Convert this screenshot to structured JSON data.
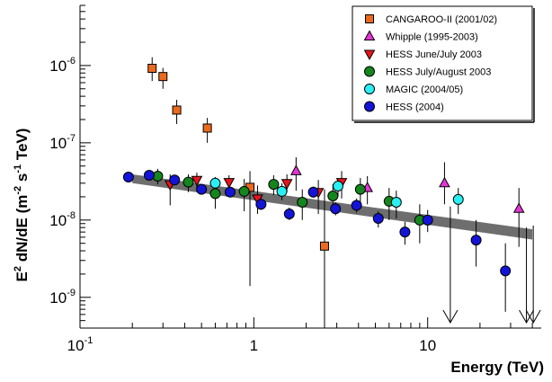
{
  "chart_data": {
    "type": "scatter",
    "xlabel": "Energy (TeV)",
    "ylabel_parts": {
      "base": "E",
      "base_sup": "2",
      "middle": " dN/dE  (m",
      "m_sup": "-2",
      "s": " s",
      "s_sup": "-1",
      "tail": " TeV)"
    },
    "x_scale": "log",
    "y_scale": "log",
    "xlim": [
      0.1,
      45
    ],
    "ylim": [
      4e-10,
      6e-06
    ],
    "x_ticks": [
      {
        "value": 0.1,
        "base": "10",
        "exp": "-1"
      },
      {
        "value": 1,
        "base": "1",
        "exp": ""
      },
      {
        "value": 10,
        "base": "10",
        "exp": ""
      }
    ],
    "y_ticks": [
      {
        "value": 1e-09,
        "base": "10",
        "exp": "-9"
      },
      {
        "value": 1e-08,
        "base": "10",
        "exp": "-8"
      },
      {
        "value": 1e-07,
        "base": "10",
        "exp": "-7"
      },
      {
        "value": 1e-06,
        "base": "10",
        "exp": "-6"
      }
    ],
    "grid": false,
    "legend_position": "top-right",
    "band": {
      "color": "#6e6e6e",
      "upper": [
        [
          0.2,
          3.9e-08
        ],
        [
          40,
          7.6e-09
        ]
      ],
      "lower": [
        [
          0.2,
          3e-08
        ],
        [
          40,
          5.6e-09
        ]
      ]
    },
    "series": [
      {
        "name": "CANGAROO-II (2001/02)",
        "marker": "square",
        "color": "#ec6a1e",
        "points": [
          {
            "x": 0.26,
            "y": 9.2e-07,
            "lo": 6.3e-07,
            "hi": 1.28e-06
          },
          {
            "x": 0.3,
            "y": 7.2e-07,
            "lo": 5e-07,
            "hi": 9.3e-07
          },
          {
            "x": 0.36,
            "y": 2.65e-07,
            "lo": 1.75e-07,
            "hi": 3.6e-07
          },
          {
            "x": 0.54,
            "y": 1.55e-07,
            "lo": 1e-07,
            "hi": 2.1e-07
          },
          {
            "x": 0.95,
            "y": 2.65e-08,
            "lo": 1.4e-09,
            "hi": 4.3e-08
          },
          {
            "x": 2.55,
            "y": 4.6e-09,
            "lo": 4e-10,
            "hi": 2.5e-08
          }
        ]
      },
      {
        "name": "Whipple (1995-2003)",
        "marker": "triangle-up",
        "color": "#e535d6",
        "points": [
          {
            "x": 1.75,
            "y": 4.3e-08,
            "lo": 2.4e-08,
            "hi": 6.5e-08
          },
          {
            "x": 4.5,
            "y": 2.6e-08,
            "lo": 1.6e-08,
            "hi": 3.7e-08
          },
          {
            "x": 12.5,
            "y": 3e-08,
            "lo": 1.6e-08,
            "hi": 5.6e-08
          },
          {
            "x": 33.5,
            "y": 1.4e-08,
            "lo": 4.5e-09,
            "hi": 2.6e-08
          }
        ]
      },
      {
        "name": "HESS June/July 2003",
        "marker": "triangle-down",
        "color": "#e8141b",
        "points": [
          {
            "x": 0.33,
            "y": 2.9e-08,
            "lo": 1.55e-08,
            "hi": 3.9e-08
          },
          {
            "x": 0.47,
            "y": 3.3e-08,
            "lo": 2.3e-08,
            "hi": 4.1e-08
          },
          {
            "x": 0.72,
            "y": 3.1e-08,
            "lo": 2.1e-08,
            "hi": 3.8e-08
          },
          {
            "x": 1.05,
            "y": 1.9e-08,
            "lo": 1.2e-08,
            "hi": 2.8e-08
          },
          {
            "x": 1.55,
            "y": 3e-08,
            "lo": 2.3e-08,
            "hi": 3.9e-08
          },
          {
            "x": 2.35,
            "y": 2.3e-08,
            "lo": 1.2e-08,
            "hi": 3.3e-08
          },
          {
            "x": 3.2,
            "y": 3.1e-08,
            "lo": 1.9e-08,
            "hi": 4.3e-08
          }
        ]
      },
      {
        "name": "HESS July/August 2003",
        "marker": "circle",
        "color": "#14861d",
        "points": [
          {
            "x": 0.28,
            "y": 3.7e-08,
            "lo": 2.9e-08,
            "hi": 4.6e-08
          },
          {
            "x": 0.42,
            "y": 3.1e-08,
            "lo": 2.3e-08,
            "hi": 3.9e-08
          },
          {
            "x": 0.6,
            "y": 2.2e-08,
            "lo": 1.4e-08,
            "hi": 3e-08
          },
          {
            "x": 0.88,
            "y": 2.35e-08,
            "lo": 1.3e-08,
            "hi": 3.4e-08
          },
          {
            "x": 1.3,
            "y": 2.9e-08,
            "lo": 2.1e-08,
            "hi": 3.8e-08
          },
          {
            "x": 1.9,
            "y": 1.7e-08,
            "lo": 1e-08,
            "hi": 2.5e-08
          },
          {
            "x": 2.85,
            "y": 2.05e-08,
            "lo": 1.3e-08,
            "hi": 2.9e-08
          },
          {
            "x": 4.1,
            "y": 2.5e-08,
            "lo": 1.6e-08,
            "hi": 3.5e-08
          },
          {
            "x": 6.0,
            "y": 1.75e-08,
            "lo": 1e-08,
            "hi": 2.6e-08
          },
          {
            "x": 9.0,
            "y": 1e-08,
            "lo": 5e-09,
            "hi": 1.6e-08
          }
        ]
      },
      {
        "name": "MAGIC (2004/05)",
        "marker": "circle",
        "color": "#2af0f4",
        "points": [
          {
            "x": 0.6,
            "y": 3e-08,
            "lo": 2.5e-08,
            "hi": 3.6e-08
          },
          {
            "x": 1.45,
            "y": 2.35e-08,
            "lo": 1.8e-08,
            "hi": 3e-08
          },
          {
            "x": 3.05,
            "y": 2.75e-08,
            "lo": 2e-08,
            "hi": 3.5e-08
          },
          {
            "x": 6.6,
            "y": 1.7e-08,
            "lo": 1.05e-08,
            "hi": 2.4e-08
          },
          {
            "x": 15.0,
            "y": 1.85e-08,
            "lo": 1.2e-08,
            "hi": 2.6e-08
          }
        ]
      },
      {
        "name": "HESS (2004)",
        "marker": "circle",
        "color": "#1414d8",
        "points": [
          {
            "x": 0.19,
            "y": 3.6e-08,
            "lo": 3.3e-08,
            "hi": 3.9e-08
          },
          {
            "x": 0.25,
            "y": 3.8e-08,
            "lo": 3.5e-08,
            "hi": 4.1e-08
          },
          {
            "x": 0.35,
            "y": 3.3e-08,
            "lo": 3e-08,
            "hi": 3.6e-08
          },
          {
            "x": 0.5,
            "y": 2.5e-08,
            "lo": 2.2e-08,
            "hi": 2.8e-08
          },
          {
            "x": 0.73,
            "y": 2.3e-08,
            "lo": 2e-08,
            "hi": 2.6e-08
          },
          {
            "x": 1.1,
            "y": 1.6e-08,
            "lo": 1.35e-08,
            "hi": 1.85e-08
          },
          {
            "x": 1.6,
            "y": 1.2e-08,
            "lo": 1e-08,
            "hi": 1.45e-08
          },
          {
            "x": 2.2,
            "y": 2.3e-08,
            "lo": 1.95e-08,
            "hi": 2.7e-08
          },
          {
            "x": 2.95,
            "y": 1.4e-08,
            "lo": 1.15e-08,
            "hi": 1.7e-08
          },
          {
            "x": 3.9,
            "y": 1.55e-08,
            "lo": 1.25e-08,
            "hi": 1.9e-08
          },
          {
            "x": 5.2,
            "y": 1.05e-08,
            "lo": 8e-09,
            "hi": 1.3e-08
          },
          {
            "x": 7.4,
            "y": 7e-09,
            "lo": 4.8e-09,
            "hi": 9.5e-09
          },
          {
            "x": 10.0,
            "y": 1e-08,
            "lo": 7e-09,
            "hi": 1.35e-08
          },
          {
            "x": 19.0,
            "y": 5.5e-09,
            "lo": 2.5e-09,
            "hi": 1e-08
          },
          {
            "x": 28.0,
            "y": 2.2e-09,
            "lo": 6.5e-10,
            "hi": 5e-09
          }
        ]
      }
    ],
    "upper_limits": [
      {
        "x": 13.5,
        "y": 1.5e-08
      },
      {
        "x": 37.0,
        "y": 8e-09
      },
      {
        "x": 40.5,
        "y": 8.5e-09
      }
    ]
  }
}
